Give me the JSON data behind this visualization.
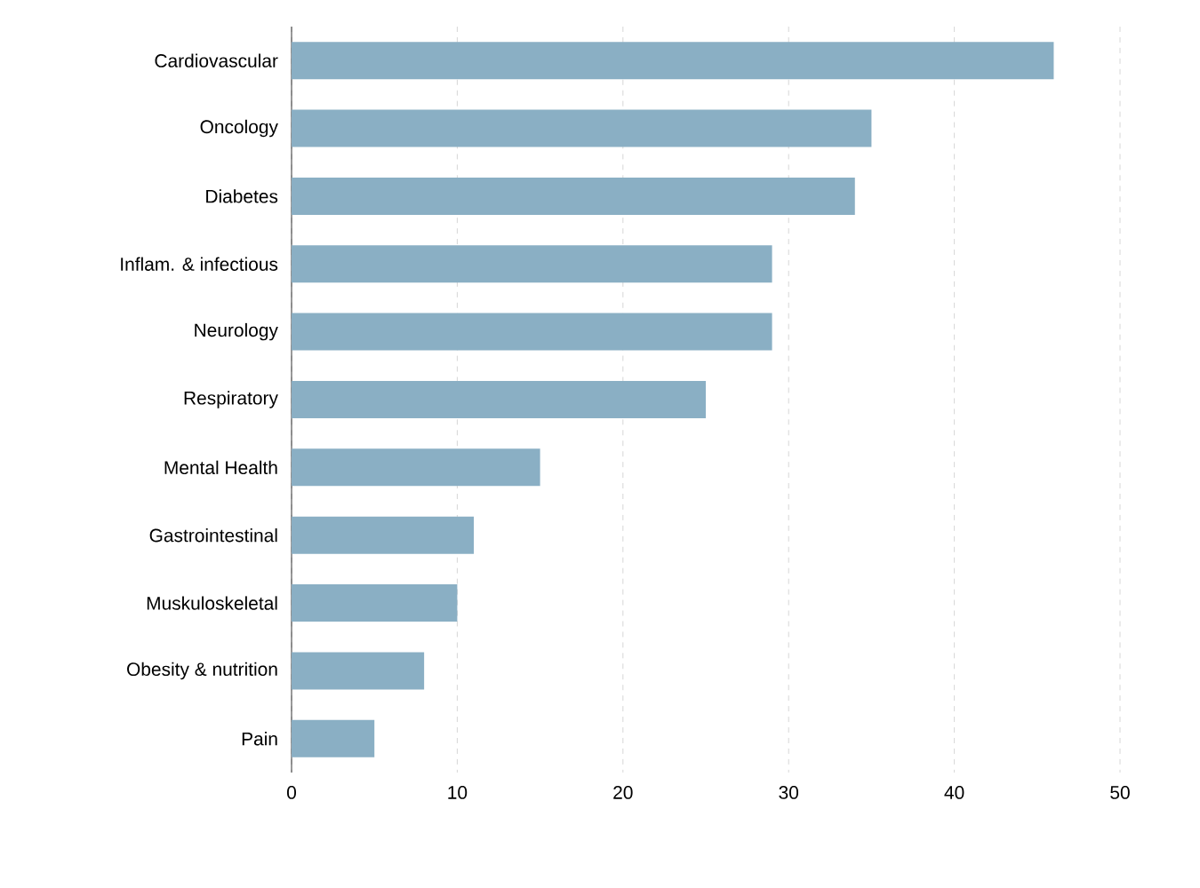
{
  "chart_data": {
    "type": "bar",
    "orientation": "horizontal",
    "categories": [
      "Cardiovascular",
      "Oncology",
      "Diabetes",
      "Inflam. & infectious",
      "Neurology",
      "Respiratory",
      "Mental Health",
      "Gastrointestinal",
      "Muskuloskeletal",
      "Obesity & nutrition",
      "Pain"
    ],
    "values": [
      46,
      35,
      34,
      29,
      29,
      25,
      15,
      11,
      10,
      8,
      5
    ],
    "color": "#8aafc4",
    "xlim": [
      0,
      50
    ],
    "xticks": [
      0,
      10,
      20,
      30,
      40,
      50
    ],
    "grid": "x"
  }
}
